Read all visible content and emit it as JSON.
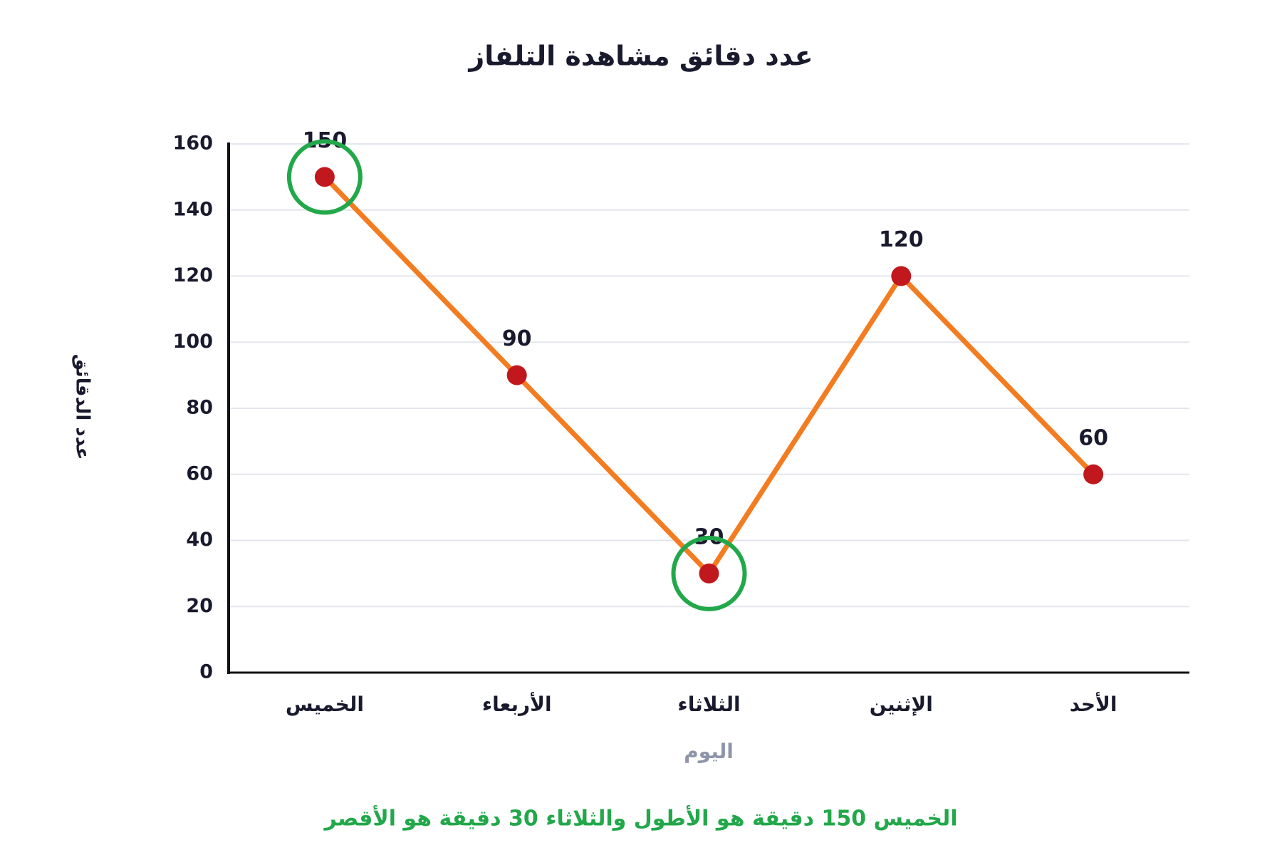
{
  "chart_data": {
    "type": "line",
    "title": "عدد دقائق مشاهدة التلفاز",
    "x_label": "اليوم",
    "y_label": "عدد الدقائق",
    "categories": [
      "الخميس",
      "الأربعاء",
      "الثلاثاء",
      "الإثنين",
      "الأحد"
    ],
    "values": [
      150,
      90,
      30,
      120,
      60
    ],
    "color": "#f47c20",
    "marker_color": "#c0181c",
    "highlight": {
      "indices": [
        0,
        2
      ],
      "color": "#22a84a"
    },
    "annotation": "الخميس 150 دقيقة هو الأطول والثلاثاء 30 دقيقة هو الأقصر",
    "ylim": [
      0,
      160
    ],
    "yticks": [
      0,
      20,
      40,
      60,
      80,
      100,
      120,
      140,
      160
    ],
    "grid": true
  }
}
